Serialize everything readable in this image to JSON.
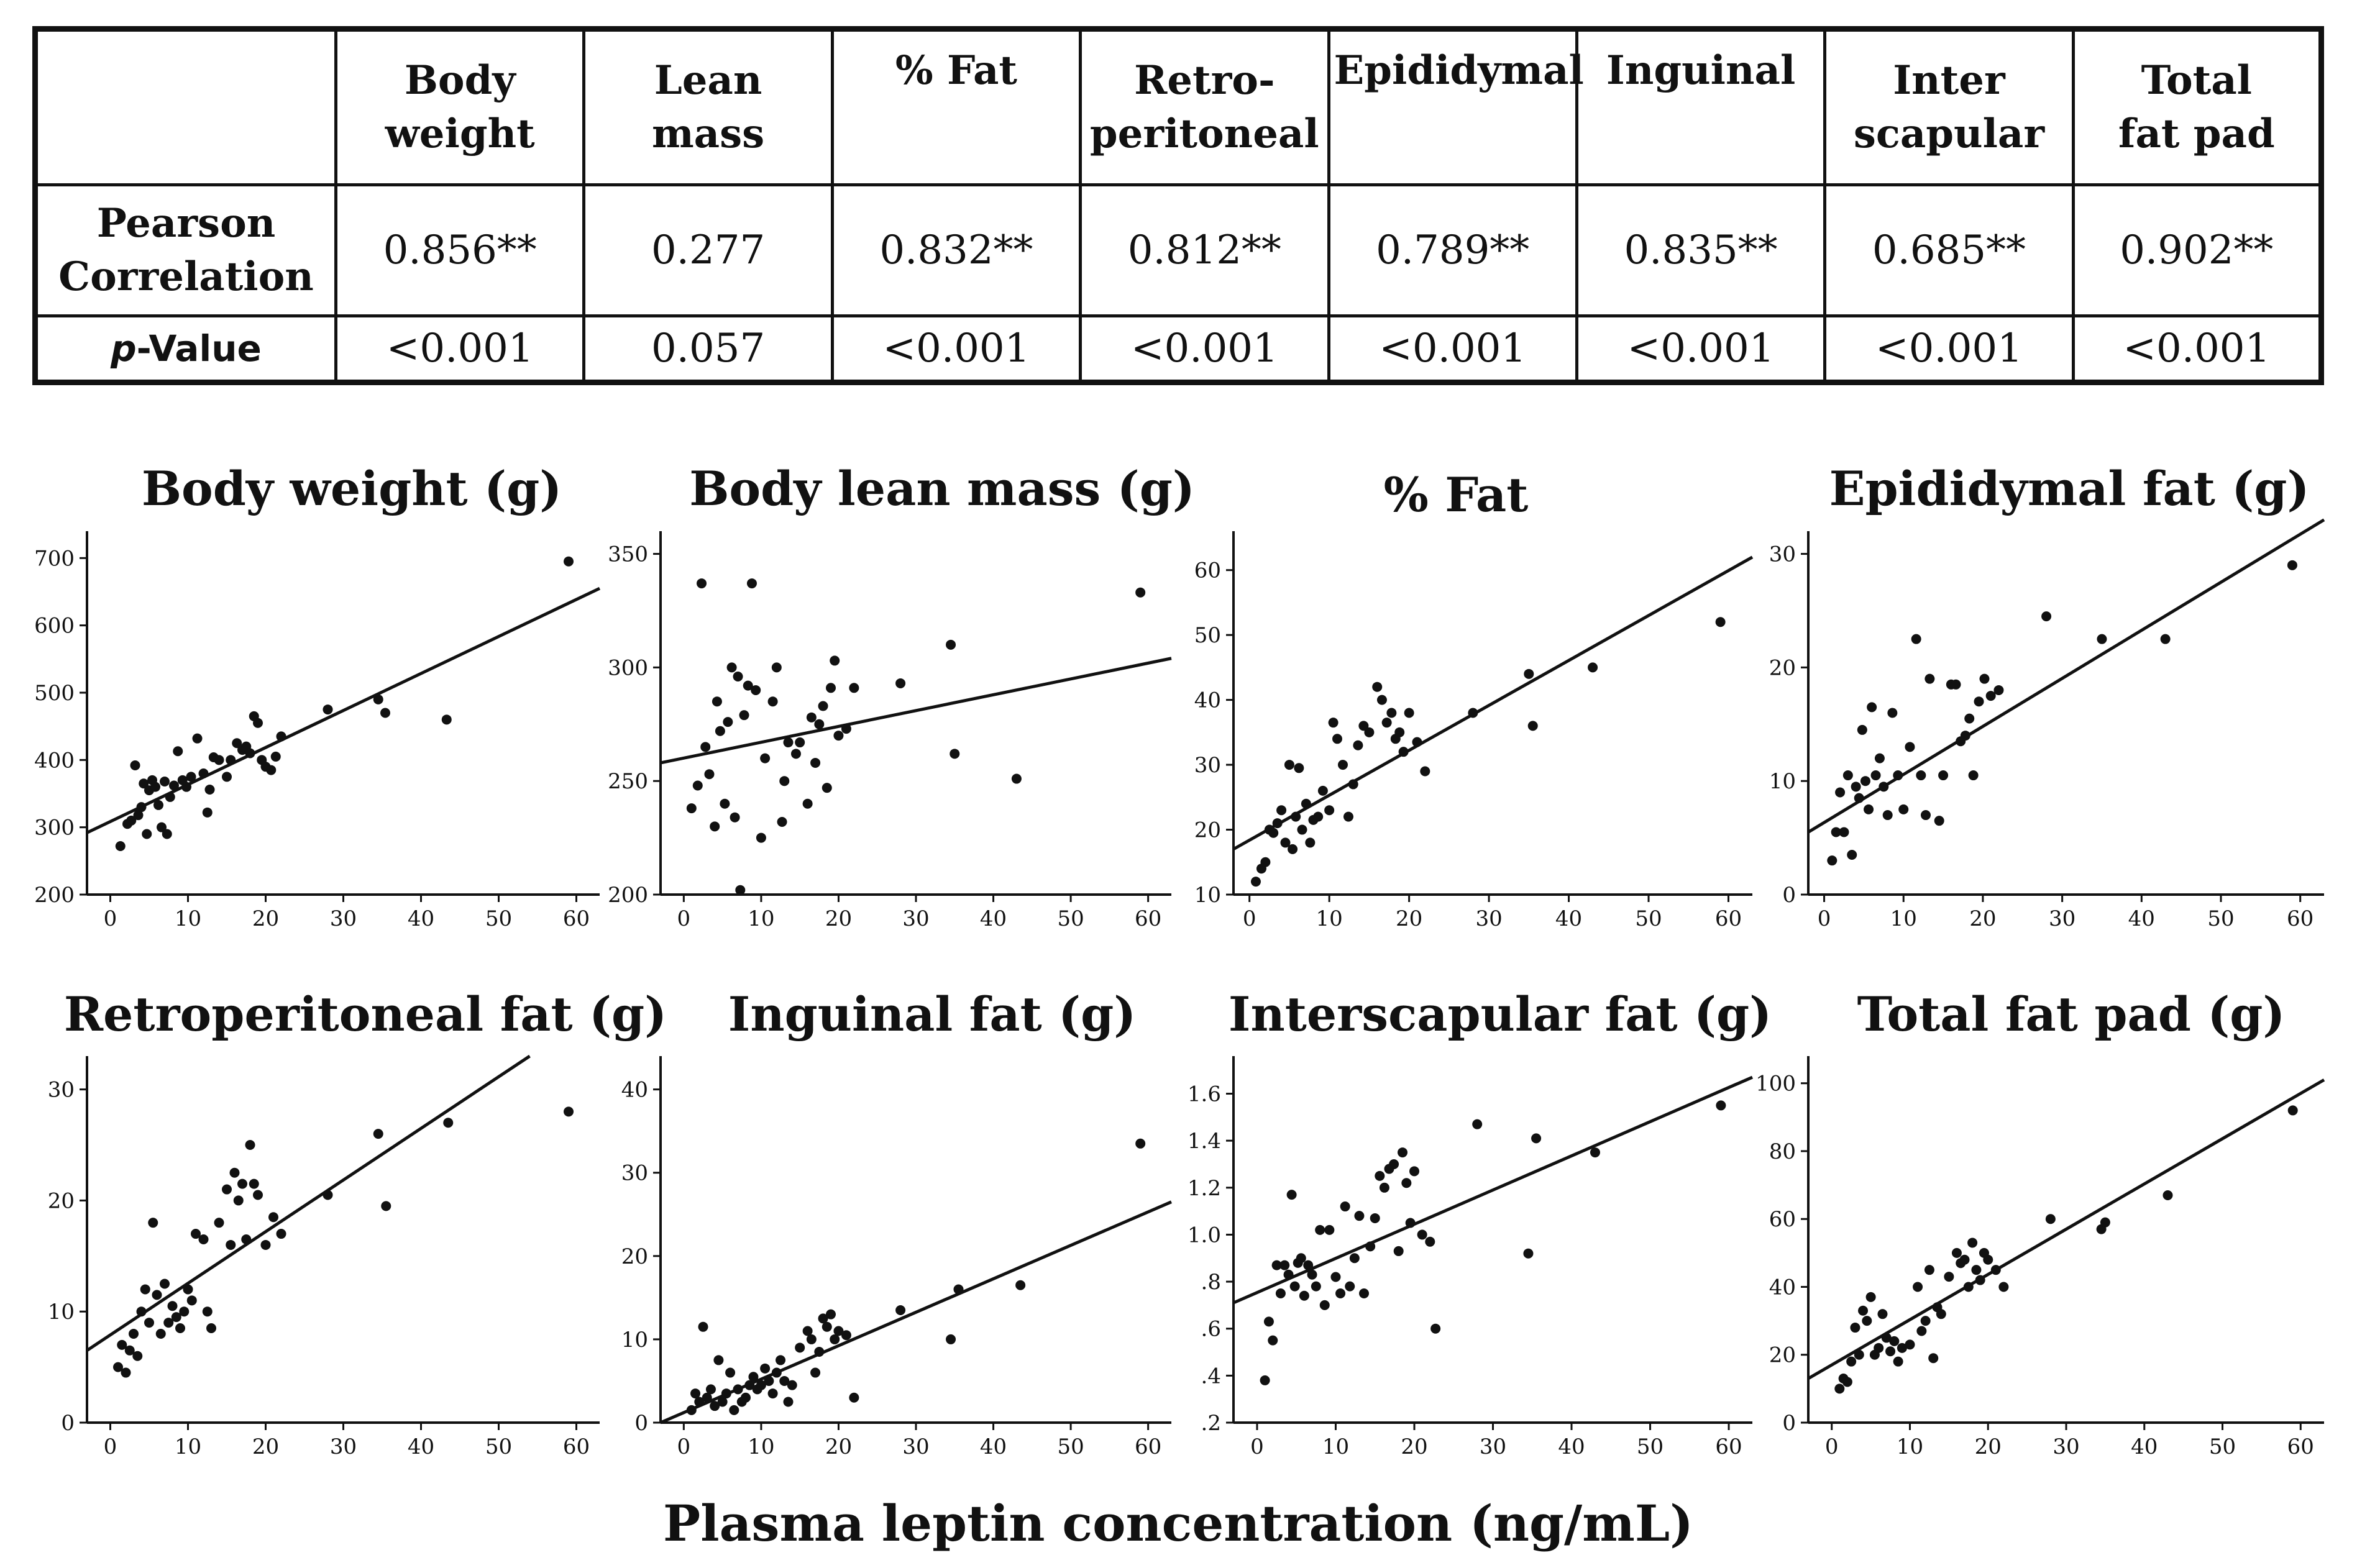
{
  "table": {
    "headers": [
      [
        "Body",
        "weight"
      ],
      [
        "Lean",
        "mass"
      ],
      [
        "% Fat"
      ],
      [
        "Retro-",
        "peritoneal"
      ],
      [
        "Epididymal"
      ],
      [
        "Inguinal"
      ],
      [
        "Inter",
        "scapular"
      ],
      [
        "Total",
        "fat pad"
      ]
    ],
    "pearson_label": [
      "Pearson",
      "Correlation"
    ],
    "pvalue_label_italic": "p",
    "pvalue_label_rest": "-Value",
    "pearson": [
      "0.856**",
      "0.277",
      "0.832**",
      "0.812**",
      "0.789**",
      "0.835**",
      "0.685**",
      "0.902**"
    ],
    "pvalues": [
      "<0.001",
      "0.057",
      "<0.001",
      "<0.001",
      "<0.001",
      "<0.001",
      "<0.001",
      "<0.001"
    ]
  },
  "x_axis_label": "Plasma leptin concentration (ng/mL)",
  "chart_data": [
    {
      "type": "scatter",
      "title": "Body weight (g)",
      "xlabel": "Plasma leptin concentration (ng/mL)",
      "xlim": [
        -3,
        63
      ],
      "ylim": [
        200,
        740
      ],
      "xticks": [
        0,
        10,
        20,
        30,
        40,
        50,
        60
      ],
      "yticks": [
        200,
        300,
        400,
        500,
        600,
        700
      ],
      "ytick_labels": [
        "200",
        "300",
        "400",
        "500",
        "600",
        "700"
      ],
      "fit_line": [
        [
          -3,
          292
        ],
        [
          63,
          655
        ]
      ],
      "x": [
        1.3,
        2.2,
        2.7,
        3.2,
        3.6,
        4.0,
        4.3,
        4.7,
        5.0,
        5.4,
        5.8,
        6.2,
        6.6,
        7.0,
        7.3,
        7.7,
        8.2,
        8.7,
        9.3,
        9.8,
        10.4,
        11.2,
        12.0,
        12.5,
        12.8,
        13.3,
        14.0,
        15.0,
        15.5,
        16.3,
        17.0,
        17.5,
        18.0,
        18.5,
        19.0,
        19.5,
        20.0,
        20.7,
        21.3,
        22.0,
        28.0,
        34.5,
        35.4,
        43.3,
        59.0
      ],
      "y": [
        272,
        305,
        310,
        392,
        318,
        330,
        365,
        290,
        355,
        370,
        360,
        333,
        300,
        368,
        290,
        345,
        362,
        413,
        370,
        360,
        375,
        432,
        380,
        322,
        356,
        404,
        400,
        375,
        400,
        425,
        415,
        420,
        410,
        465,
        455,
        400,
        390,
        385,
        405,
        435,
        475,
        490,
        470,
        460,
        695
      ]
    },
    {
      "type": "scatter",
      "title": "Body lean mass (g)",
      "xlabel": "Plasma leptin concentration (ng/mL)",
      "xlim": [
        -3,
        63
      ],
      "ylim": [
        200,
        360
      ],
      "xticks": [
        0,
        10,
        20,
        30,
        40,
        50,
        60
      ],
      "yticks": [
        200,
        250,
        300,
        350
      ],
      "ytick_labels": [
        "200",
        "250",
        "300",
        "350"
      ],
      "fit_line": [
        [
          -3,
          258
        ],
        [
          63,
          304
        ]
      ],
      "x": [
        1.0,
        1.8,
        2.3,
        2.8,
        3.3,
        4.0,
        4.3,
        4.7,
        5.3,
        5.7,
        6.2,
        6.6,
        7.0,
        7.3,
        7.8,
        8.3,
        8.8,
        9.3,
        10.0,
        10.5,
        11.5,
        12.0,
        12.7,
        13.0,
        13.5,
        14.5,
        15.0,
        16.0,
        16.5,
        17.0,
        17.5,
        18.0,
        18.5,
        19.0,
        19.5,
        20.0,
        21.0,
        22.0,
        28.0,
        34.5,
        35.0,
        43.0,
        59.0
      ],
      "y": [
        238,
        248,
        337,
        265,
        253,
        230,
        285,
        272,
        240,
        276,
        300,
        234,
        296,
        202,
        279,
        292,
        337,
        290,
        225,
        260,
        285,
        300,
        232,
        250,
        267,
        262,
        267,
        240,
        278,
        258,
        275,
        283,
        247,
        291,
        303,
        270,
        273,
        291,
        293,
        310,
        262,
        251,
        333
      ]
    },
    {
      "type": "scatter",
      "title": "% Fat",
      "xlabel": "Plasma leptin concentration (ng/mL)",
      "xlim": [
        -2,
        63
      ],
      "ylim": [
        10,
        66
      ],
      "xticks": [
        0,
        10,
        20,
        30,
        40,
        50,
        60
      ],
      "yticks": [
        10,
        20,
        30,
        40,
        50,
        60
      ],
      "ytick_labels": [
        "10",
        "20",
        "30",
        "40",
        "50",
        "60"
      ],
      "fit_line": [
        [
          -2,
          17.0
        ],
        [
          63,
          62.0
        ]
      ],
      "x": [
        0.8,
        1.5,
        2.0,
        2.5,
        3.0,
        3.5,
        4.0,
        4.5,
        5.0,
        5.4,
        5.8,
        6.2,
        6.6,
        7.1,
        7.6,
        8.0,
        8.6,
        9.2,
        10.0,
        10.5,
        11.0,
        11.7,
        12.4,
        13.0,
        13.6,
        14.3,
        15.0,
        16.0,
        16.6,
        17.2,
        17.8,
        18.3,
        18.8,
        19.3,
        20.0,
        21.0,
        22.0,
        28.0,
        35.0,
        35.5,
        43.0,
        59.0
      ],
      "y": [
        12.0,
        14.0,
        15.0,
        20.0,
        19.5,
        21.0,
        23.0,
        18.0,
        30.0,
        17.0,
        22.0,
        29.5,
        20.0,
        24.0,
        18.0,
        21.5,
        22.0,
        26.0,
        23.0,
        36.5,
        34.0,
        30.0,
        22.0,
        27.0,
        33.0,
        36.0,
        35.0,
        42.0,
        40.0,
        36.5,
        38.0,
        34.0,
        35.0,
        32.0,
        38.0,
        33.5,
        29.0,
        38.0,
        44.0,
        36.0,
        45.0,
        52.0
      ]
    },
    {
      "type": "scatter",
      "title": "Epididymal fat (g)",
      "xlabel": "Plasma leptin concentration (ng/mL)",
      "xlim": [
        -2,
        63
      ],
      "ylim": [
        0,
        32
      ],
      "xticks": [
        0,
        10,
        20,
        30,
        40,
        50,
        60
      ],
      "yticks": [
        0,
        10,
        20,
        30
      ],
      "ytick_labels": [
        "0",
        "10",
        "20",
        "30"
      ],
      "fit_line": [
        [
          -2,
          5.5
        ],
        [
          63,
          33.0
        ]
      ],
      "x": [
        1.0,
        1.5,
        2.0,
        2.5,
        3.0,
        3.5,
        4.0,
        4.4,
        4.8,
        5.2,
        5.6,
        6.0,
        6.5,
        7.0,
        7.5,
        8.0,
        8.6,
        9.3,
        10.0,
        10.8,
        11.6,
        12.2,
        12.8,
        13.3,
        14.5,
        15.0,
        16.0,
        16.6,
        17.2,
        17.8,
        18.3,
        18.8,
        19.5,
        20.2,
        21.0,
        22.0,
        28.0,
        35.0,
        43.0,
        59.0
      ],
      "y": [
        3.0,
        5.5,
        9.0,
        5.5,
        10.5,
        3.5,
        9.5,
        8.5,
        14.5,
        10.0,
        7.5,
        16.5,
        10.5,
        12.0,
        9.5,
        7.0,
        16.0,
        10.5,
        7.5,
        13.0,
        22.5,
        10.5,
        7.0,
        19.0,
        6.5,
        10.5,
        18.5,
        18.5,
        13.5,
        14.0,
        15.5,
        10.5,
        17.0,
        19.0,
        17.5,
        18.0,
        24.5,
        22.5,
        22.5,
        29.0
      ]
    },
    {
      "type": "scatter",
      "title": "Retroperitoneal fat (g)",
      "xlabel": "Plasma leptin concentration (ng/mL)",
      "xlim": [
        -3,
        63
      ],
      "ylim": [
        0,
        33
      ],
      "xticks": [
        0,
        10,
        20,
        30,
        40,
        50,
        60
      ],
      "yticks": [
        0,
        10,
        20,
        30
      ],
      "ytick_labels": [
        "0",
        "10",
        "20",
        "30"
      ],
      "fit_line": [
        [
          -3,
          6.5
        ],
        [
          54,
          33.0
        ]
      ],
      "x": [
        1.0,
        1.5,
        2.0,
        2.5,
        3.0,
        3.5,
        4.0,
        4.5,
        5.0,
        5.5,
        6.0,
        6.5,
        7.0,
        7.5,
        8.0,
        8.5,
        9.0,
        9.5,
        10.0,
        10.5,
        11.0,
        12.0,
        12.5,
        13.0,
        14.0,
        15.0,
        15.5,
        16.0,
        16.5,
        17.0,
        17.5,
        18.0,
        18.5,
        19.0,
        20.0,
        21.0,
        22.0,
        28.0,
        34.5,
        35.5,
        43.5,
        59.0
      ],
      "y": [
        5.0,
        7.0,
        4.5,
        6.5,
        8.0,
        6.0,
        10.0,
        12.0,
        9.0,
        18.0,
        11.5,
        8.0,
        12.5,
        9.0,
        10.5,
        9.5,
        8.5,
        10.0,
        12.0,
        11.0,
        17.0,
        16.5,
        10.0,
        8.5,
        18.0,
        21.0,
        16.0,
        22.5,
        20.0,
        21.5,
        16.5,
        25.0,
        21.5,
        20.5,
        16.0,
        18.5,
        17.0,
        20.5,
        26.0,
        19.5,
        27.0,
        28.0
      ]
    },
    {
      "type": "scatter",
      "title": "Inguinal fat (g)",
      "xlabel": "Plasma leptin concentration (ng/mL)",
      "xlim": [
        -3,
        63
      ],
      "ylim": [
        0,
        44
      ],
      "xticks": [
        0,
        10,
        20,
        30,
        40,
        50,
        60
      ],
      "yticks": [
        0,
        10,
        20,
        30,
        40
      ],
      "ytick_labels": [
        "0",
        "10",
        "20",
        "30",
        "40"
      ],
      "fit_line": [
        [
          -3,
          0.0
        ],
        [
          63,
          26.5
        ]
      ],
      "x": [
        1.0,
        1.5,
        2.0,
        2.5,
        3.0,
        3.5,
        4.0,
        4.5,
        5.0,
        5.5,
        6.0,
        6.5,
        7.0,
        7.5,
        8.0,
        8.5,
        9.0,
        9.5,
        10.0,
        10.5,
        11.0,
        11.5,
        12.0,
        12.5,
        13.0,
        13.5,
        14.0,
        15.0,
        16.0,
        16.5,
        17.0,
        17.5,
        18.0,
        18.5,
        19.0,
        19.5,
        20.0,
        21.0,
        22.0,
        28.0,
        34.5,
        35.5,
        43.5,
        59.0
      ],
      "y": [
        1.5,
        3.5,
        2.5,
        11.5,
        3.0,
        4.0,
        2.0,
        7.5,
        2.5,
        3.5,
        6.0,
        1.5,
        4.0,
        2.5,
        3.0,
        4.5,
        5.5,
        4.0,
        4.5,
        6.5,
        5.0,
        3.5,
        6.0,
        7.5,
        5.0,
        2.5,
        4.5,
        9.0,
        11.0,
        10.0,
        6.0,
        8.5,
        12.5,
        11.5,
        13.0,
        10.0,
        11.0,
        10.5,
        3.0,
        13.5,
        10.0,
        16.0,
        16.5,
        33.5
      ]
    },
    {
      "type": "scatter",
      "title": "Interscapular fat (g)",
      "xlabel": "Plasma leptin concentration (ng/mL)",
      "xlim": [
        -3,
        63
      ],
      "ylim": [
        0.2,
        1.76
      ],
      "xticks": [
        0,
        10,
        20,
        30,
        40,
        50,
        60
      ],
      "yticks": [
        0.2,
        0.4,
        0.6,
        0.8,
        1.0,
        1.2,
        1.4,
        1.6
      ],
      "ytick_labels": [
        ".2",
        ".4",
        ".6",
        ".8",
        "1.0",
        "1.2",
        "1.4",
        "1.6"
      ],
      "fit_line": [
        [
          -3,
          0.71
        ],
        [
          63,
          1.67
        ]
      ],
      "x": [
        1.0,
        1.5,
        2.0,
        2.5,
        3.0,
        3.5,
        4.0,
        4.4,
        4.8,
        5.2,
        5.6,
        6.0,
        6.5,
        7.0,
        7.5,
        8.0,
        8.6,
        9.2,
        10.0,
        10.6,
        11.2,
        11.8,
        12.4,
        13.0,
        13.6,
        14.4,
        15.0,
        15.6,
        16.2,
        16.8,
        17.4,
        18.0,
        18.5,
        19.0,
        19.5,
        20.0,
        21.0,
        22.0,
        22.7,
        28.0,
        34.5,
        35.5,
        43.0,
        59.0
      ],
      "y": [
        0.38,
        0.63,
        0.55,
        0.87,
        0.75,
        0.87,
        0.83,
        1.17,
        0.78,
        0.88,
        0.9,
        0.74,
        0.87,
        0.83,
        0.78,
        1.02,
        0.7,
        1.02,
        0.82,
        0.75,
        1.12,
        0.78,
        0.9,
        1.08,
        0.75,
        0.95,
        1.07,
        1.25,
        1.2,
        1.28,
        1.3,
        0.93,
        1.35,
        1.22,
        1.05,
        1.27,
        1.0,
        0.97,
        0.6,
        1.47,
        0.92,
        1.41,
        1.35,
        1.55
      ]
    },
    {
      "type": "scatter",
      "title": "Total fat pad (g)",
      "xlabel": "Plasma leptin concentration (ng/mL)",
      "xlim": [
        -3,
        63
      ],
      "ylim": [
        0,
        108
      ],
      "xticks": [
        0,
        10,
        20,
        30,
        40,
        50,
        60
      ],
      "yticks": [
        0,
        20,
        40,
        60,
        80,
        100
      ],
      "ytick_labels": [
        "0",
        "20",
        "40",
        "60",
        "80",
        "100"
      ],
      "fit_line": [
        [
          -3,
          13.0
        ],
        [
          63,
          101.0
        ]
      ],
      "x": [
        1.0,
        1.5,
        2.0,
        2.5,
        3.0,
        3.5,
        4.0,
        4.5,
        5.0,
        5.5,
        6.0,
        6.5,
        7.0,
        7.5,
        8.0,
        8.5,
        9.0,
        10.0,
        11.0,
        11.5,
        12.0,
        12.5,
        13.0,
        13.5,
        14.0,
        15.0,
        16.0,
        16.5,
        17.0,
        17.5,
        18.0,
        18.5,
        19.0,
        19.5,
        20.0,
        21.0,
        22.0,
        28.0,
        34.5,
        35.0,
        43.0,
        59.0
      ],
      "y": [
        10.0,
        13.0,
        12.0,
        18.0,
        28.0,
        20.0,
        33.0,
        30.0,
        37.0,
        20.0,
        22.0,
        32.0,
        25.0,
        21.0,
        24.0,
        18.0,
        22.0,
        23.0,
        40.0,
        27.0,
        30.0,
        45.0,
        19.0,
        34.0,
        32.0,
        43.0,
        50.0,
        47.0,
        48.0,
        40.0,
        53.0,
        45.0,
        42.0,
        50.0,
        48.0,
        45.0,
        40.0,
        60.0,
        57.0,
        59.0,
        67.0,
        92.0
      ]
    }
  ]
}
